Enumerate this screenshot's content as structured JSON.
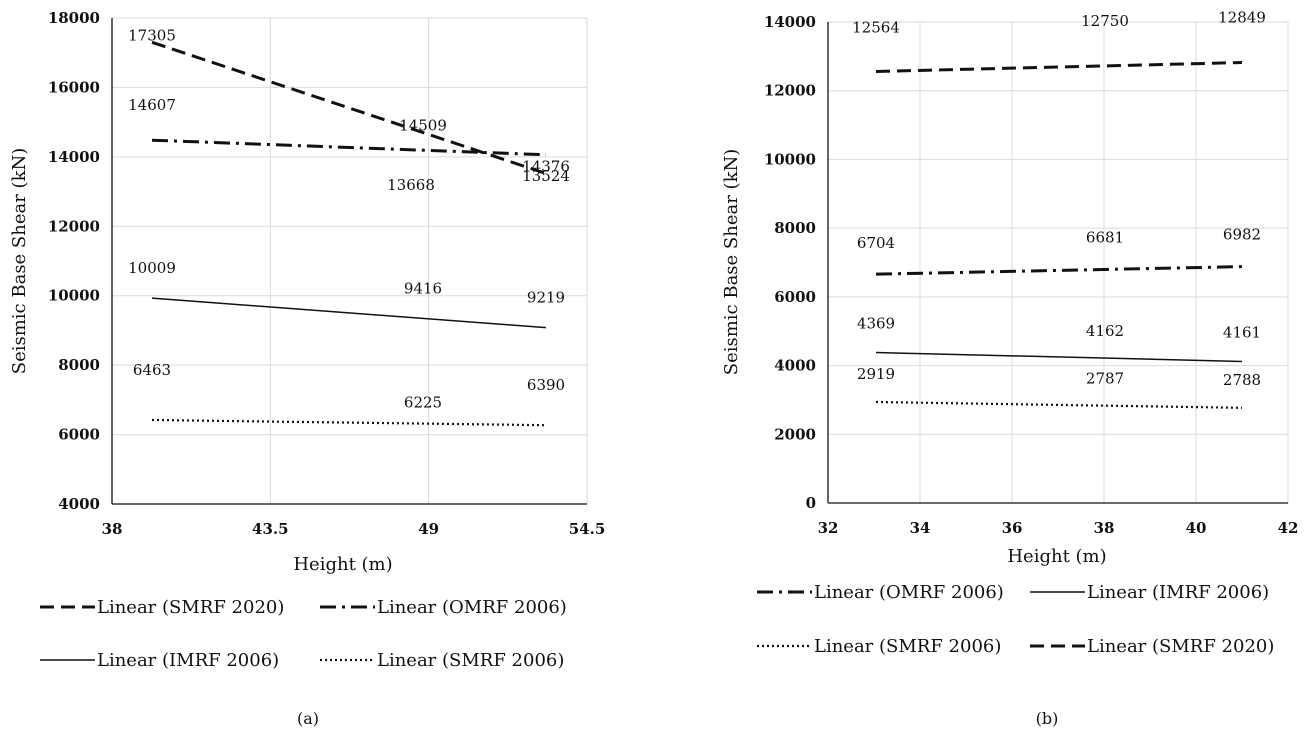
{
  "chart_data": [
    {
      "type": "line",
      "caption": "(a)",
      "xlabel": "Height (m)",
      "ylabel": "Seismic Base Shear (kN)",
      "xlim": [
        38,
        54.5
      ],
      "ylim": [
        4000,
        18000
      ],
      "xticks": [
        38,
        43.5,
        49,
        54.5
      ],
      "xtick_labels": [
        "38",
        "43.5",
        "49",
        "54.5"
      ],
      "yticks": [
        4000,
        6000,
        8000,
        10000,
        12000,
        14000,
        16000,
        18000
      ],
      "ytick_labels": [
        "4000",
        "6000",
        "8000",
        "10000",
        "12000",
        "14000",
        "16000",
        "18000"
      ],
      "grid": true,
      "legend_position": "bottom",
      "x": [
        39.8,
        49.4,
        53.8
      ],
      "series": [
        {
          "name": "Linear (SMRF 2020)",
          "style": "dash",
          "labels": [
            "17305",
            "14509",
            "14376"
          ],
          "line": [
            17300,
            13520
          ]
        },
        {
          "name": "Linear (OMRF 2006)",
          "style": "dashdot",
          "labels": [
            "14607",
            "13668",
            "13524"
          ],
          "line": [
            14480,
            14060
          ]
        },
        {
          "name": "Linear (IMRF 2006)",
          "style": "solid",
          "labels": [
            "10009",
            "9416",
            "9219"
          ],
          "line": [
            9930,
            9080
          ]
        },
        {
          "name": "Linear (SMRF 2006)",
          "style": "dot",
          "labels": [
            "6463",
            "6225",
            "6390"
          ],
          "line": [
            6420,
            6270
          ]
        }
      ]
    },
    {
      "type": "line",
      "caption": "(b)",
      "xlabel": "Height (m)",
      "ylabel": "Seismic Base Shear (kN)",
      "xlim": [
        32,
        42
      ],
      "ylim": [
        0,
        14000
      ],
      "xticks": [
        32,
        34,
        36,
        38,
        40,
        42
      ],
      "xtick_labels": [
        "32",
        "34",
        "36",
        "38",
        "40",
        "42"
      ],
      "yticks": [
        0,
        2000,
        4000,
        6000,
        8000,
        10000,
        12000,
        14000
      ],
      "ytick_labels": [
        "0",
        "2000",
        "4000",
        "6000",
        "8000",
        "10000",
        "12000",
        "14000"
      ],
      "grid": true,
      "legend_position": "bottom",
      "x": [
        33,
        38,
        41
      ],
      "series": [
        {
          "name": "Linear (OMRF 2006)",
          "style": "dashdot",
          "labels": [
            "6704",
            "6681",
            "6982"
          ],
          "line": [
            6660,
            6880
          ]
        },
        {
          "name": "Linear (IMRF 2006)",
          "style": "solid",
          "labels": [
            "4369",
            "4162",
            "4161"
          ],
          "line": [
            4380,
            4120
          ]
        },
        {
          "name": "Linear (SMRF 2006)",
          "style": "dot",
          "labels": [
            "2919",
            "2787",
            "2788"
          ],
          "line": [
            2940,
            2770
          ]
        },
        {
          "name": "Linear (SMRF 2020)",
          "style": "dash",
          "labels": [
            "12564",
            "12750",
            "12849"
          ],
          "line": [
            12560,
            12820
          ]
        }
      ]
    }
  ]
}
